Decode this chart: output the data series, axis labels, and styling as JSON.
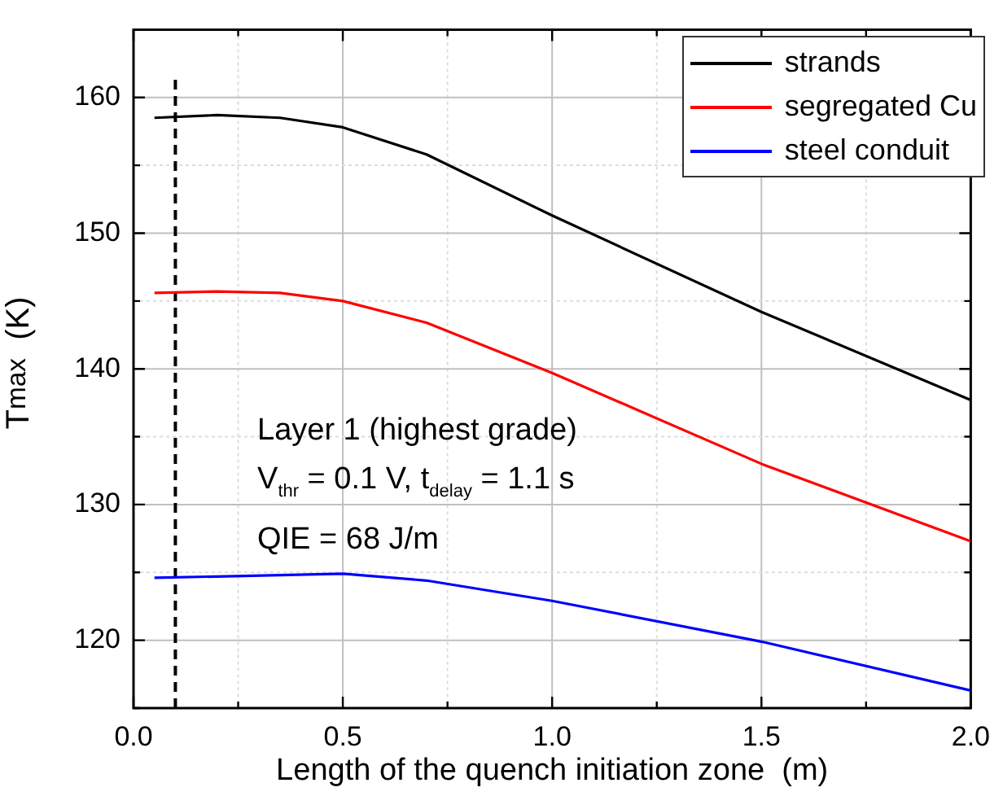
{
  "chart_data": {
    "type": "line",
    "xlabel": "Length of the quench initiation zone  (m)",
    "ylabel": "T$_{max}$  (K)",
    "x": [
      0.05,
      0.2,
      0.35,
      0.5,
      0.7,
      1.0,
      1.5,
      2.0
    ],
    "series": [
      {
        "name": "strands",
        "color": "#000000",
        "values": [
          158.5,
          158.7,
          158.5,
          157.8,
          155.8,
          151.3,
          144.2,
          137.7
        ]
      },
      {
        "name": "segregated Cu",
        "color": "#ff0000",
        "values": [
          145.6,
          145.7,
          145.6,
          145.0,
          143.4,
          139.7,
          133.0,
          127.3
        ]
      },
      {
        "name": "steel conduit",
        "color": "#0000ff",
        "values": [
          124.6,
          124.7,
          124.8,
          124.9,
          124.4,
          122.9,
          119.9,
          116.3
        ]
      }
    ],
    "xlim": [
      0,
      2
    ],
    "ylim": [
      115,
      165
    ],
    "xticks": [
      {
        "value": 0,
        "label": "0.0"
      },
      {
        "value": 0.25,
        "label": null
      },
      {
        "value": 0.5,
        "label": "0.5"
      },
      {
        "value": 0.75,
        "label": null
      },
      {
        "value": 1,
        "label": "1.0"
      },
      {
        "value": 1.25,
        "label": null
      },
      {
        "value": 1.5,
        "label": "1.5"
      },
      {
        "value": 1.75,
        "label": null
      },
      {
        "value": 2,
        "label": "2.0"
      }
    ],
    "yticks": [
      {
        "value": 115,
        "label": null
      },
      120,
      {
        "value": 125,
        "label": null
      },
      130,
      {
        "value": 135,
        "label": null
      },
      140,
      {
        "value": 145,
        "label": null
      },
      150,
      {
        "value": 155,
        "label": null
      },
      160,
      {
        "value": 165,
        "label": null
      }
    ],
    "ref_lines": [
      {
        "axis": "x",
        "value": 0.1,
        "color": "#000000",
        "line_style": "dashed"
      }
    ],
    "annotations": [
      "Layer 1 (highest grade)",
      "V$_{thr}$ = 0.1 V,  t$_{delay}$ = 1.1 s",
      "QIE = 68 J/m"
    ],
    "grid": true,
    "legend": "top right",
    "marker": "none",
    "line_style": "solid"
  }
}
